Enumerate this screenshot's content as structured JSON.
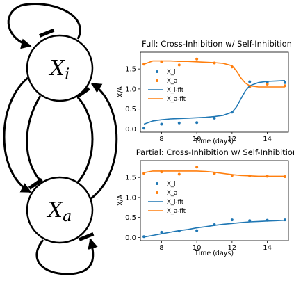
{
  "diagram": {
    "nodes": [
      {
        "id": "xi",
        "symbol": "X",
        "subscript": "i"
      },
      {
        "id": "xa",
        "symbol": "X",
        "subscript": "a"
      }
    ],
    "edges": [
      {
        "from": "xi",
        "to": "xi",
        "type": "inhibition"
      },
      {
        "from": "xa",
        "to": "xa",
        "type": "inhibition"
      },
      {
        "from": "xi",
        "to": "xa",
        "type": "activation"
      },
      {
        "from": "xa",
        "to": "xi",
        "type": "inhibition"
      }
    ]
  },
  "chart_data": [
    {
      "type": "scatter",
      "title": "Full: Cross-Inhibition w/ Self-Inhibition",
      "xlabel": "Time (days)",
      "ylabel": "X/A",
      "xlim": [
        6.8,
        15.2
      ],
      "ylim": [
        -0.08,
        1.92
      ],
      "xticks": [
        8,
        10,
        12,
        14
      ],
      "yticks": [
        "0.0",
        "0.5",
        "1.0",
        "1.5"
      ],
      "legend_position": "center-left",
      "colors": {
        "xi": "#1f77b4",
        "xa": "#ff7f0e"
      },
      "series": [
        {
          "name": "X_i",
          "kind": "points",
          "x": [
            7,
            8,
            9,
            10,
            11,
            12,
            13,
            14,
            15
          ],
          "values": [
            0.02,
            0.12,
            0.15,
            0.16,
            0.27,
            0.42,
            1.18,
            1.17,
            1.16
          ]
        },
        {
          "name": "X_a",
          "kind": "points",
          "x": [
            7,
            8,
            9,
            10,
            11,
            12,
            13,
            14,
            15
          ],
          "values": [
            1.62,
            1.68,
            1.6,
            1.75,
            1.65,
            1.55,
            1.05,
            1.12,
            1.08
          ]
        },
        {
          "name": "X_i-fit",
          "kind": "line",
          "x": [
            7,
            7.5,
            8,
            8.5,
            9,
            9.5,
            10,
            10.5,
            11,
            11.5,
            12,
            12.25,
            12.5,
            12.75,
            13,
            13.5,
            14,
            14.5,
            15
          ],
          "values": [
            0.12,
            0.2,
            0.23,
            0.25,
            0.26,
            0.27,
            0.28,
            0.29,
            0.31,
            0.34,
            0.42,
            0.55,
            0.75,
            0.95,
            1.08,
            1.16,
            1.19,
            1.2,
            1.21
          ]
        },
        {
          "name": "X_a-fit",
          "kind": "line",
          "x": [
            7,
            7.5,
            8,
            8.5,
            9,
            9.5,
            10,
            10.5,
            11,
            11.5,
            12,
            12.25,
            12.5,
            12.75,
            13,
            13.5,
            14,
            14.5,
            15
          ],
          "values": [
            1.62,
            1.7,
            1.7,
            1.7,
            1.69,
            1.69,
            1.68,
            1.67,
            1.66,
            1.64,
            1.58,
            1.45,
            1.28,
            1.15,
            1.08,
            1.05,
            1.05,
            1.05,
            1.05
          ]
        }
      ]
    },
    {
      "type": "scatter",
      "title": "Partial: Cross-Inhibition w/ Self-Inhibition",
      "xlabel": "Time (days)",
      "ylabel": "X/A",
      "xlim": [
        6.8,
        15.2
      ],
      "ylim": [
        -0.08,
        1.92
      ],
      "xticks": [
        8,
        10,
        12,
        14
      ],
      "yticks": [
        "0.0",
        "0.5",
        "1.0",
        "1.5"
      ],
      "legend_position": "center-left",
      "colors": {
        "xi": "#1f77b4",
        "xa": "#ff7f0e"
      },
      "series": [
        {
          "name": "X_i",
          "kind": "points",
          "x": [
            7,
            8,
            9,
            10,
            11,
            12,
            13,
            14,
            15
          ],
          "values": [
            0.02,
            0.13,
            0.16,
            0.17,
            0.32,
            0.44,
            0.42,
            0.43,
            0.44
          ]
        },
        {
          "name": "X_a",
          "kind": "points",
          "x": [
            7,
            8,
            9,
            10,
            11,
            12,
            13,
            14,
            15
          ],
          "values": [
            1.6,
            1.64,
            1.58,
            1.76,
            1.6,
            1.55,
            1.54,
            1.53,
            1.52
          ]
        },
        {
          "name": "X_i-fit",
          "kind": "line",
          "x": [
            7,
            7.5,
            8,
            8.5,
            9,
            9.5,
            10,
            10.5,
            11,
            11.5,
            12,
            12.5,
            13,
            13.5,
            14,
            14.5,
            15
          ],
          "values": [
            0.01,
            0.05,
            0.09,
            0.13,
            0.17,
            0.2,
            0.24,
            0.27,
            0.3,
            0.33,
            0.35,
            0.37,
            0.39,
            0.4,
            0.41,
            0.42,
            0.43
          ]
        },
        {
          "name": "X_a-fit",
          "kind": "line",
          "x": [
            7,
            7.5,
            8,
            8.5,
            9,
            9.5,
            10,
            10.5,
            11,
            11.5,
            12,
            12.5,
            13,
            13.5,
            14,
            14.5,
            15
          ],
          "values": [
            1.62,
            1.66,
            1.66,
            1.66,
            1.66,
            1.66,
            1.66,
            1.65,
            1.63,
            1.6,
            1.57,
            1.55,
            1.54,
            1.53,
            1.53,
            1.53,
            1.53
          ]
        }
      ]
    }
  ]
}
